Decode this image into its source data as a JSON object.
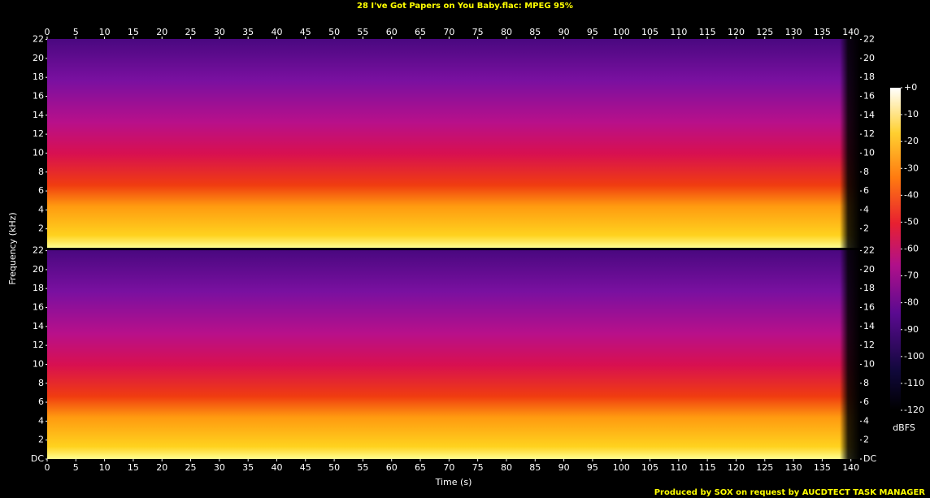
{
  "chart_data": [
    {
      "type": "spectrogram",
      "title": "28 I've Got Papers on You Baby.flac: MPEG 95%",
      "ylabel": "Frequency (kHz)",
      "xlim": [
        0,
        141.6
      ],
      "xticks": [
        0,
        5,
        10,
        15,
        20,
        25,
        30,
        35,
        40,
        45,
        50,
        55,
        60,
        65,
        70,
        75,
        80,
        85,
        90,
        95,
        100,
        105,
        110,
        115,
        120,
        125,
        130,
        135,
        140
      ],
      "ylim": [
        0,
        22.05
      ],
      "yticks": [
        2,
        4,
        6,
        8,
        10,
        12,
        14,
        16,
        18,
        20,
        22
      ]
    },
    {
      "type": "spectrogram",
      "xlabel": "Time (s)",
      "xlim": [
        0,
        141.6
      ],
      "xticks": [
        0,
        5,
        10,
        15,
        20,
        25,
        30,
        35,
        40,
        45,
        50,
        55,
        60,
        65,
        70,
        75,
        80,
        85,
        90,
        95,
        100,
        105,
        110,
        115,
        120,
        125,
        130,
        135,
        140
      ],
      "ylim": [
        0,
        22.05
      ],
      "yticks": [
        {
          "value": 0,
          "label": "DC"
        },
        2,
        4,
        6,
        8,
        10,
        12,
        14,
        16,
        18,
        20,
        22
      ],
      "colorbar": {
        "label": "dBFS",
        "lim": [
          -120,
          0
        ],
        "ticks": [
          {
            "value": 0,
            "label": "+0"
          },
          -10,
          -20,
          -30,
          -40,
          -50,
          -60,
          -70,
          -80,
          -90,
          -100,
          -110,
          -120
        ]
      }
    }
  ],
  "footer": "Produced by SOX on request by AUCDTECT TASK MANAGER"
}
